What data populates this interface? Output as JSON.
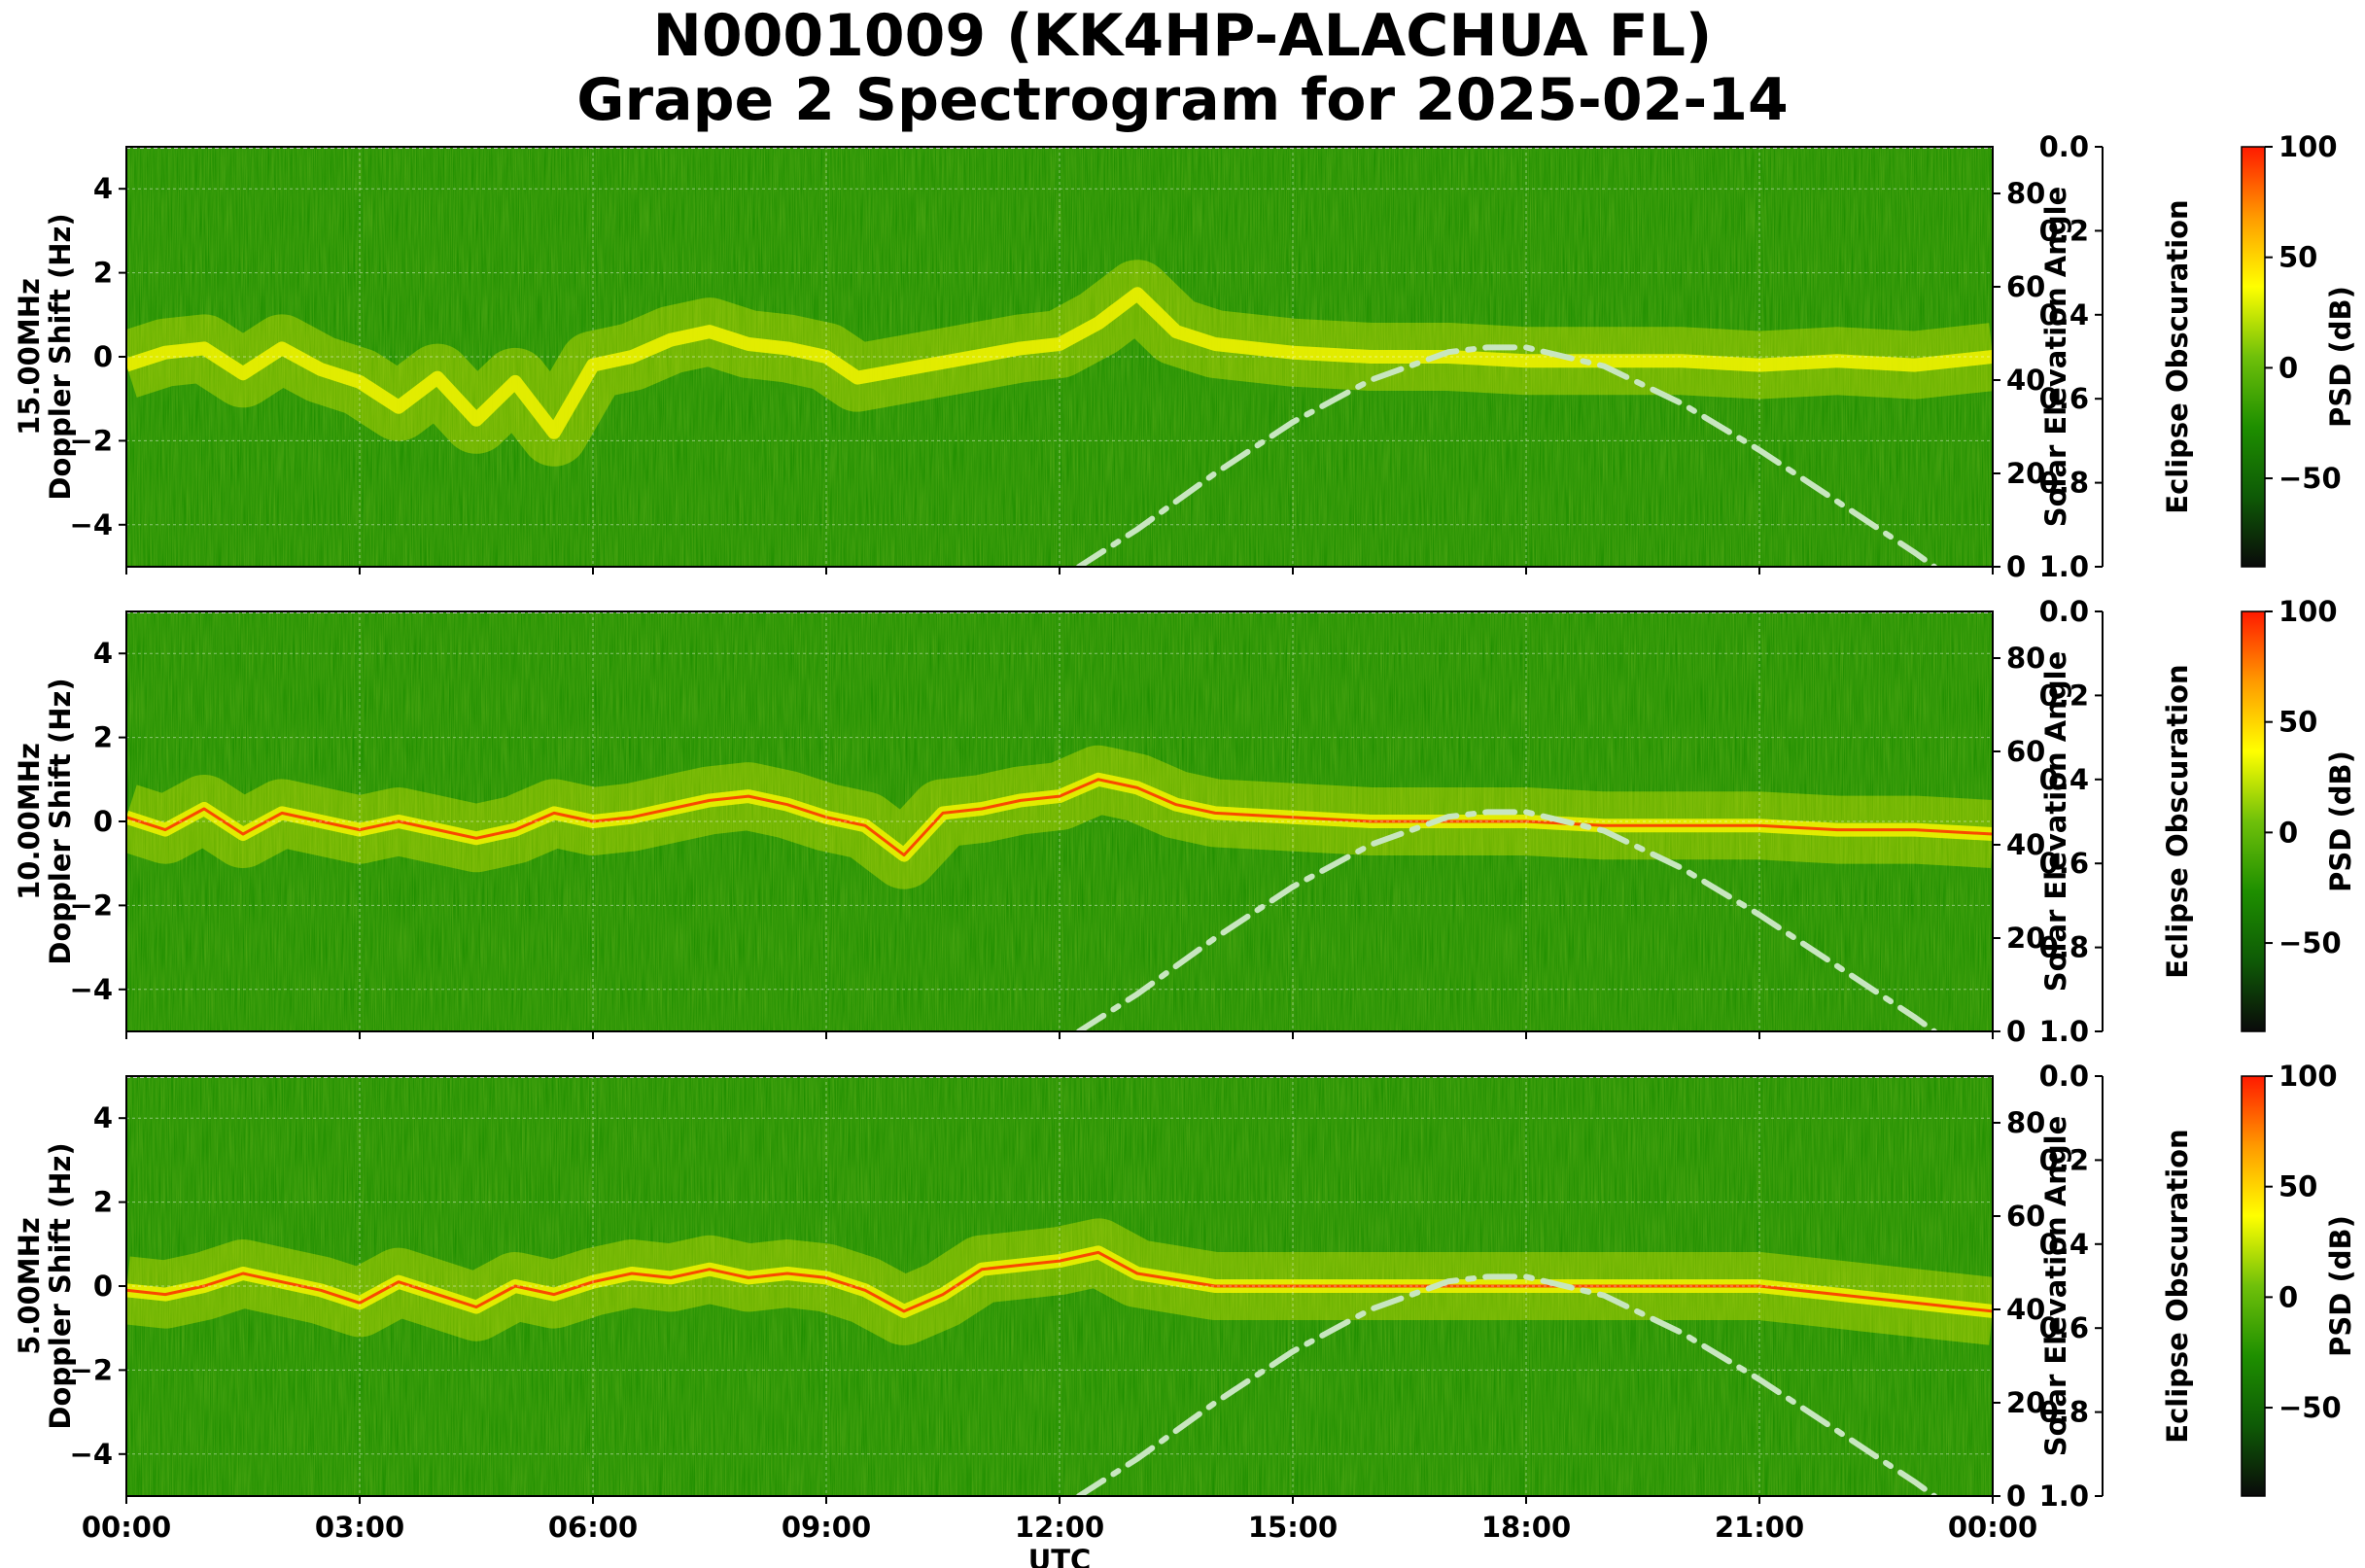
{
  "figure": {
    "title_line1": "N0001009 (KK4HP-ALACHUA FL)",
    "title_line2": "Grape 2 Spectrogram for 2025-02-14"
  },
  "colors": {
    "spectrogram_background": "#1f8f00",
    "signal_yellow": "#f4f400",
    "signal_red": "#ff2000",
    "solar_elevation_curve": "#c8e6c0",
    "grid": "#ffffff",
    "colormap": [
      "#0a0a0a",
      "#0e5a06",
      "#1e8f00",
      "#6fc00a",
      "#ffff00",
      "#ff9a00",
      "#ff1a00"
    ]
  },
  "chart_data": [
    {
      "type": "heatmap",
      "panel_label": "15.00MHz",
      "ylabel": "Doppler Shift (Hz)",
      "xlabel": "",
      "xlim": [
        "00:00",
        "00:00"
      ],
      "ylim": [
        -5,
        5
      ],
      "yticks": [
        -4,
        -2,
        0,
        2,
        4
      ],
      "grid": true,
      "doppler_trace": {
        "x_hours": [
          0,
          0.5,
          1,
          1.5,
          2,
          2.5,
          3,
          3.5,
          4,
          4.5,
          5,
          5.5,
          6,
          6.5,
          7,
          7.5,
          8,
          8.5,
          9,
          9.4,
          11.5,
          12,
          12.5,
          13,
          13.5,
          14,
          15,
          16,
          17,
          18,
          19,
          20,
          21,
          22,
          23,
          24
        ],
        "y_hz": [
          -0.2,
          0.1,
          0.2,
          -0.4,
          0.2,
          -0.3,
          -0.6,
          -1.2,
          -0.5,
          -1.5,
          -0.6,
          -1.8,
          -0.2,
          0.0,
          0.4,
          0.6,
          0.3,
          0.2,
          0.0,
          -0.5,
          0.2,
          0.3,
          0.8,
          1.5,
          0.6,
          0.3,
          0.1,
          0.0,
          0.0,
          -0.1,
          -0.1,
          -0.1,
          -0.2,
          -0.1,
          -0.2,
          0.0
        ]
      },
      "solar_elevation": {
        "label": "Solar Elevation Angle",
        "ylim": [
          0,
          90
        ],
        "yticks": [
          0,
          20,
          40,
          60,
          80
        ],
        "x_hours": [
          12.25,
          13,
          14,
          15,
          16,
          17,
          17.5,
          18,
          19,
          20,
          21,
          22,
          23,
          23.25
        ],
        "y_deg": [
          0,
          8,
          20,
          31,
          40,
          46,
          47,
          47,
          43,
          35,
          25,
          14,
          3,
          0
        ]
      },
      "eclipse_obscuration": {
        "label": "Eclipse Obscuration",
        "ylim": [
          0.0,
          1.0
        ],
        "yticks": [
          "0.0",
          "0.2",
          "0.4",
          "0.6",
          "0.8",
          "1.0"
        ]
      },
      "colorbar": {
        "label": "PSD (dB)",
        "range": [
          -90,
          100
        ],
        "ticks": [
          -50,
          0,
          50,
          100
        ]
      }
    },
    {
      "type": "heatmap",
      "panel_label": "10.00MHz",
      "ylabel": "Doppler Shift (Hz)",
      "xlabel": "",
      "xlim": [
        "00:00",
        "00:00"
      ],
      "ylim": [
        -5,
        5
      ],
      "yticks": [
        -4,
        -2,
        0,
        2,
        4
      ],
      "grid": true,
      "doppler_trace": {
        "x_hours": [
          0,
          0.5,
          1,
          1.5,
          2,
          2.5,
          3,
          3.5,
          4,
          4.5,
          5,
          5.5,
          6,
          6.5,
          7,
          7.5,
          8,
          8.5,
          9,
          9.5,
          10,
          10.5,
          11,
          11.5,
          12,
          12.5,
          13,
          13.5,
          14,
          15,
          16,
          17,
          18,
          19,
          20,
          21,
          22,
          23,
          24
        ],
        "y_hz": [
          0.1,
          -0.2,
          0.3,
          -0.3,
          0.2,
          0.0,
          -0.2,
          0.0,
          -0.2,
          -0.4,
          -0.2,
          0.2,
          0.0,
          0.1,
          0.3,
          0.5,
          0.6,
          0.4,
          0.1,
          -0.1,
          -0.8,
          0.2,
          0.3,
          0.5,
          0.6,
          1.0,
          0.8,
          0.4,
          0.2,
          0.1,
          0.0,
          0.0,
          0.0,
          -0.1,
          -0.1,
          -0.1,
          -0.2,
          -0.2,
          -0.3
        ]
      },
      "solar_elevation": {
        "label": "Solar Elevation Angle",
        "ylim": [
          0,
          90
        ],
        "yticks": [
          0,
          20,
          40,
          60,
          80
        ],
        "x_hours": [
          12.25,
          13,
          14,
          15,
          16,
          17,
          17.5,
          18,
          19,
          20,
          21,
          22,
          23,
          23.25
        ],
        "y_deg": [
          0,
          8,
          20,
          31,
          40,
          46,
          47,
          47,
          43,
          35,
          25,
          14,
          3,
          0
        ]
      },
      "eclipse_obscuration": {
        "label": "Eclipse Obscuration",
        "ylim": [
          0.0,
          1.0
        ],
        "yticks": [
          "0.0",
          "0.2",
          "0.4",
          "0.6",
          "0.8",
          "1.0"
        ]
      },
      "colorbar": {
        "label": "PSD (dB)",
        "range": [
          -90,
          100
        ],
        "ticks": [
          -50,
          0,
          50,
          100
        ]
      }
    },
    {
      "type": "heatmap",
      "panel_label": "5.00MHz",
      "ylabel": "Doppler Shift (Hz)",
      "xlabel": "UTC",
      "xlim": [
        "00:00",
        "00:00"
      ],
      "xticks": [
        "00:00",
        "03:00",
        "06:00",
        "09:00",
        "12:00",
        "15:00",
        "18:00",
        "21:00",
        "00:00"
      ],
      "ylim": [
        -5,
        5
      ],
      "yticks": [
        -4,
        -2,
        0,
        2,
        4
      ],
      "grid": true,
      "doppler_trace": {
        "x_hours": [
          0,
          0.5,
          1,
          1.5,
          2,
          2.5,
          3,
          3.5,
          4,
          4.5,
          5,
          5.5,
          6,
          6.5,
          7,
          7.5,
          8,
          8.5,
          9,
          9.5,
          10,
          10.5,
          11,
          11.5,
          12,
          12.5,
          13,
          14,
          15,
          16,
          17,
          18,
          19,
          20,
          21,
          22,
          23,
          24
        ],
        "y_hz": [
          -0.1,
          -0.2,
          0.0,
          0.3,
          0.1,
          -0.1,
          -0.4,
          0.1,
          -0.2,
          -0.5,
          0.0,
          -0.2,
          0.1,
          0.3,
          0.2,
          0.4,
          0.2,
          0.3,
          0.2,
          -0.1,
          -0.6,
          -0.2,
          0.4,
          0.5,
          0.6,
          0.8,
          0.3,
          0.0,
          0.0,
          0.0,
          0.0,
          0.0,
          0.0,
          0.0,
          0.0,
          -0.2,
          -0.4,
          -0.6
        ]
      },
      "solar_elevation": {
        "label": "Solar Elevation Angle",
        "ylim": [
          0,
          90
        ],
        "yticks": [
          0,
          20,
          40,
          60,
          80
        ],
        "x_hours": [
          12.25,
          13,
          14,
          15,
          16,
          17,
          17.5,
          18,
          19,
          20,
          21,
          22,
          23,
          23.25
        ],
        "y_deg": [
          0,
          8,
          20,
          31,
          40,
          46,
          47,
          47,
          43,
          35,
          25,
          14,
          3,
          0
        ]
      },
      "eclipse_obscuration": {
        "label": "Eclipse Obscuration",
        "ylim": [
          0.0,
          1.0
        ],
        "yticks": [
          "0.0",
          "0.2",
          "0.4",
          "0.6",
          "0.8",
          "1.0"
        ]
      },
      "colorbar": {
        "label": "PSD (dB)",
        "range": [
          -90,
          100
        ],
        "ticks": [
          -50,
          0,
          50,
          100
        ]
      }
    }
  ]
}
